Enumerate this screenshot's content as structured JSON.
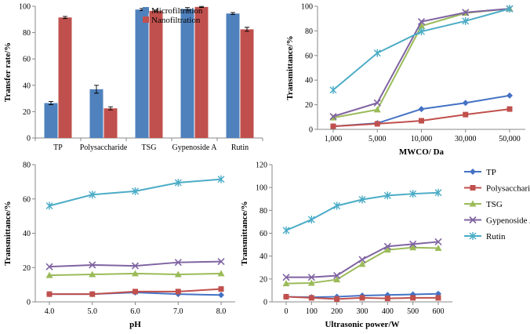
{
  "chart_data": [
    {
      "type": "bar",
      "xlabel": "",
      "ylabel": "Transfer rate/%",
      "ylim": [
        0,
        100
      ],
      "yticks": [
        0,
        20,
        40,
        60,
        80,
        100
      ],
      "legend_position": "top-center",
      "categories": [
        "TP",
        "Polysaccharide",
        "TSG",
        "Gypenoside A",
        "Rutin"
      ],
      "series": [
        {
          "name": "Microfiltration",
          "color": "#4F81BD",
          "values": [
            26.5,
            37,
            97.5,
            98,
            94.5
          ],
          "errors": [
            1.2,
            3,
            0.8,
            1,
            0.8
          ]
        },
        {
          "name": "Nanofiltration",
          "color": "#C0504D",
          "values": [
            91.5,
            22.5,
            96.5,
            99.5,
            82.5
          ],
          "errors": [
            0.8,
            1.2,
            0.6,
            0.4,
            1.5
          ]
        }
      ]
    },
    {
      "type": "line",
      "xlabel": "MWCO/ Da",
      "ylabel": "Transmittance/%",
      "ylim": [
        0,
        100
      ],
      "yticks": [
        0,
        20,
        40,
        60,
        80,
        100
      ],
      "categories": [
        "1,000",
        "5,000",
        "10,000",
        "30,000",
        "50,000"
      ],
      "series": [
        {
          "name": "TP",
          "color": "#4472C4",
          "marker": "diamond",
          "values": [
            2.5,
            5,
            16.5,
            21.5,
            27.5
          ]
        },
        {
          "name": "Polysaccharide",
          "color": "#C0504D",
          "marker": "square",
          "values": [
            2.5,
            4.5,
            7,
            12,
            16.5
          ]
        },
        {
          "name": "TSG",
          "color": "#9BBB59",
          "marker": "triangle",
          "values": [
            9.5,
            16,
            84,
            94.5,
            98
          ]
        },
        {
          "name": "Gypenoside A",
          "color": "#8064A2",
          "marker": "x",
          "values": [
            10.5,
            21.5,
            87.5,
            95,
            98
          ]
        },
        {
          "name": "Rutin",
          "color": "#4BACC6",
          "marker": "star",
          "values": [
            32,
            62,
            79.5,
            88,
            98
          ]
        }
      ]
    },
    {
      "type": "line",
      "xlabel": "pH",
      "ylabel": "Transmittance/%",
      "ylim": [
        0,
        80
      ],
      "yticks": [
        0,
        20,
        40,
        60,
        80
      ],
      "categories": [
        "4.0",
        "5.0",
        "6.0",
        "7.0",
        "8.0"
      ],
      "series": [
        {
          "name": "TP",
          "color": "#4472C4",
          "marker": "diamond",
          "values": [
            4.5,
            4.5,
            5.5,
            4.5,
            4
          ]
        },
        {
          "name": "Polysaccharide",
          "color": "#C0504D",
          "marker": "square",
          "values": [
            4.5,
            4.5,
            6,
            6,
            7.5
          ]
        },
        {
          "name": "TSG",
          "color": "#9BBB59",
          "marker": "triangle",
          "values": [
            15.5,
            16,
            16.5,
            16,
            16.5
          ]
        },
        {
          "name": "Gypenoside A",
          "color": "#8064A2",
          "marker": "x",
          "values": [
            20.5,
            21.5,
            21,
            23,
            23.5
          ]
        },
        {
          "name": "Rutin",
          "color": "#4BACC6",
          "marker": "star",
          "values": [
            56,
            62.5,
            64.5,
            69.5,
            71.5
          ]
        }
      ]
    },
    {
      "type": "line",
      "xlabel": "Ultrasonic power/W",
      "ylabel": "Transmittance/%",
      "ylim": [
        0,
        120
      ],
      "yticks": [
        0,
        20,
        40,
        60,
        80,
        100,
        120
      ],
      "legend_position": "right",
      "categories": [
        "0",
        "100",
        "200",
        "300",
        "400",
        "500",
        "600"
      ],
      "series": [
        {
          "name": "TP",
          "color": "#4472C4",
          "marker": "diamond",
          "values": [
            4.5,
            4,
            4.5,
            5.5,
            6,
            6.5,
            7
          ]
        },
        {
          "name": "Polysaccharide",
          "color": "#C0504D",
          "marker": "square",
          "values": [
            4.5,
            3.5,
            2.5,
            3.5,
            3,
            3.5,
            3.5
          ]
        },
        {
          "name": "TSG",
          "color": "#9BBB59",
          "marker": "triangle",
          "values": [
            16,
            16.5,
            19.5,
            33,
            45.5,
            47.5,
            47
          ]
        },
        {
          "name": "Gypenoside A",
          "color": "#8064A2",
          "marker": "x",
          "values": [
            21.5,
            21.5,
            23,
            37,
            48.5,
            50.5,
            52.5
          ]
        },
        {
          "name": "Rutin",
          "color": "#4BACC6",
          "marker": "star",
          "values": [
            62.5,
            72,
            84,
            89.5,
            93,
            94.5,
            95.5
          ]
        }
      ]
    }
  ]
}
